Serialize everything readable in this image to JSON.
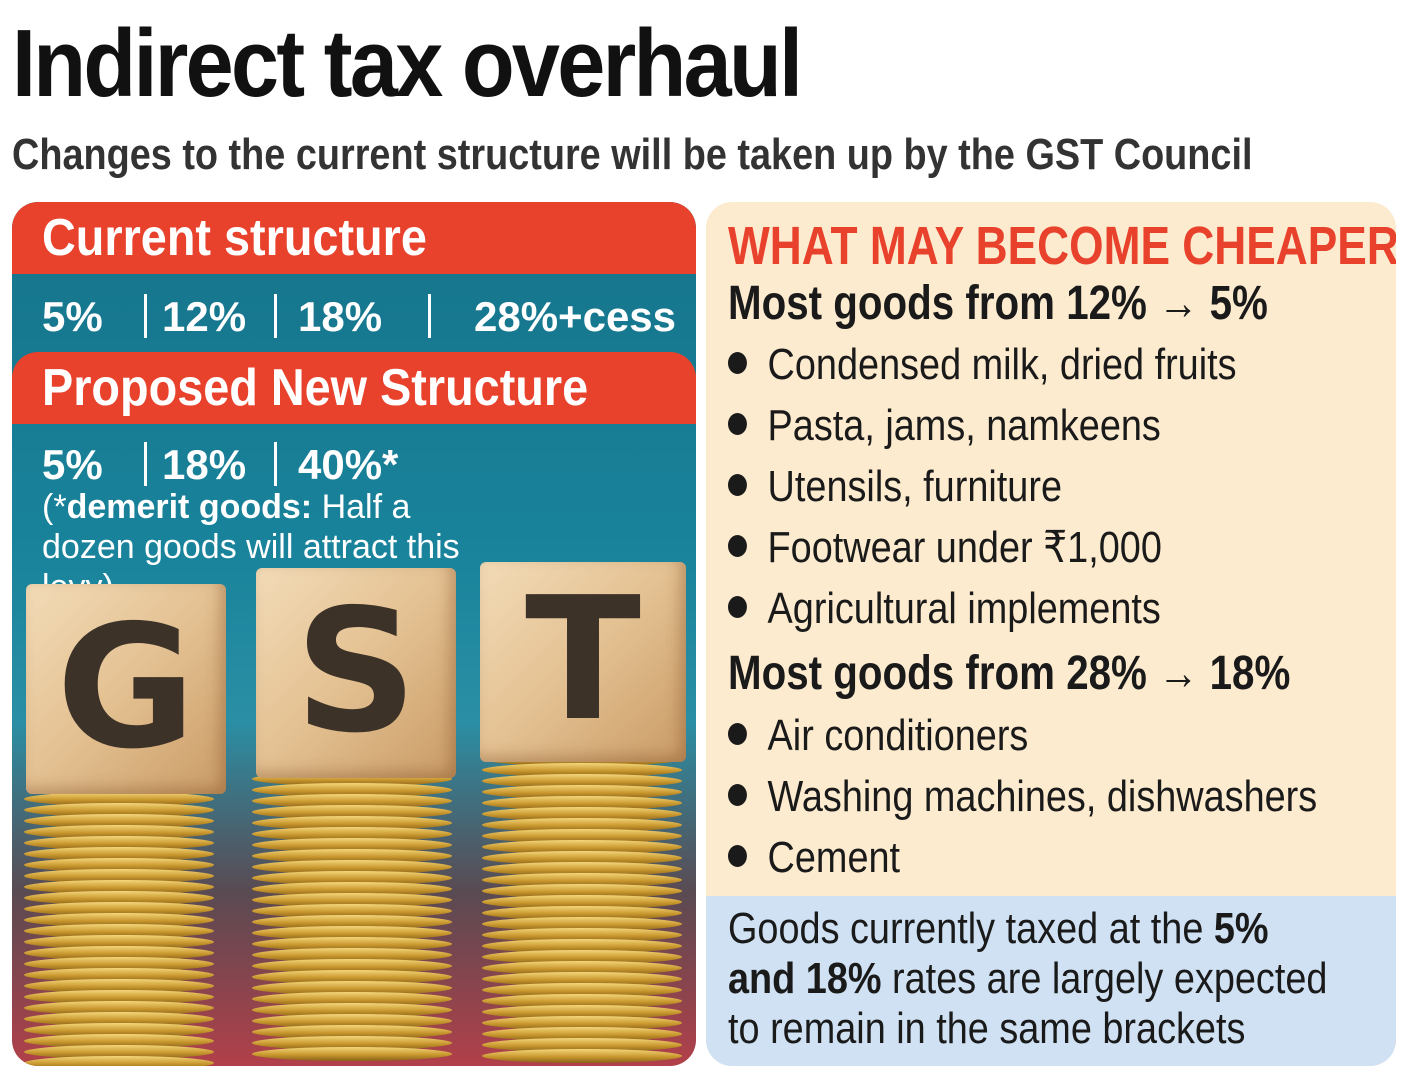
{
  "title": "Indirect tax overhaul",
  "subtitle": "Changes to the current structure will be taken up by the GST Council",
  "current": {
    "heading": "Current structure",
    "rates": [
      "5%",
      "12%",
      "18%",
      "28%+cess"
    ]
  },
  "proposed": {
    "heading": "Proposed New Structure",
    "rates": [
      "5%",
      "18%",
      "40%*"
    ],
    "note_open": "(*",
    "note_bold": "demerit goods:",
    "note_rest": " Half a dozen goods will attract this levy)"
  },
  "image": {
    "letters": [
      "G",
      "S",
      "T"
    ]
  },
  "cheaper": {
    "heading": "WHAT MAY BECOME CHEAPER",
    "groups": [
      {
        "heading": "Most goods from 12% → 5%",
        "items": [
          "Condensed milk, dried fruits",
          "Pasta, jams, namkeens",
          "Utensils, furniture",
          "Footwear under ₹1,000",
          "Agricultural implements"
        ]
      },
      {
        "heading": "Most goods from 28% → 18%",
        "items": [
          "Air conditioners",
          "Washing machines, dishwashers",
          "Cement"
        ]
      }
    ]
  },
  "footnote": {
    "text_1": "Goods currently taxed at the ",
    "bold_1": "5%",
    "bold_2": "and 18%",
    "text_2": " rates are largely expected",
    "text_3": "to remain in the same brackets"
  },
  "colors": {
    "accent_red": "#e8412c",
    "teal": "#18839b",
    "cream": "#fcebcf",
    "light_blue": "#cfe1f2"
  }
}
